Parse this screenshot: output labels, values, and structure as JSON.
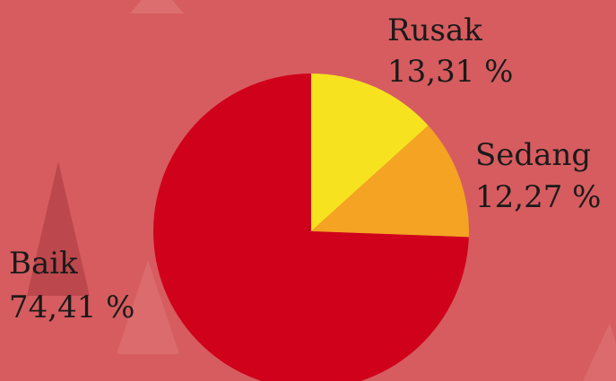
{
  "chart_data": {
    "type": "pie",
    "categories": [
      "Rusak",
      "Sedang",
      "Baik"
    ],
    "values": [
      13.31,
      12.27,
      74.41
    ],
    "value_labels": [
      "13,31 %",
      "12,27 %",
      "74,41 %"
    ],
    "colors": [
      "#f7e21f",
      "#f4a322",
      "#d0021b"
    ]
  }
}
